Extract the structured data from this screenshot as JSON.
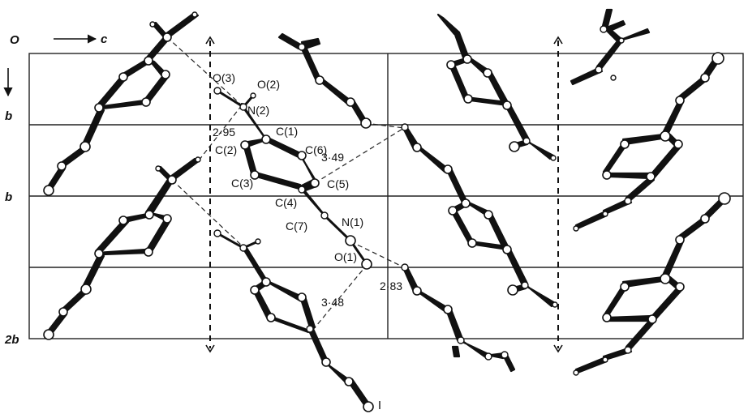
{
  "axes": {
    "origin": "O",
    "c_label": "c",
    "b_label_top": "b",
    "b_label_row1": "b",
    "b_label_row2": "b",
    "two_b_label": "2b"
  },
  "atom_labels": {
    "O3": "O(3)",
    "O2": "O(2)",
    "N2": "N(2)",
    "C1": "C(1)",
    "C6": "C(6)",
    "C2": "C(2)",
    "C3": "C(3)",
    "C5": "C(5)",
    "C4": "C(4)",
    "C7": "C(7)",
    "N1": "N(1)",
    "O1": "O(1)"
  },
  "distances": {
    "d1": "2·95",
    "d2": "3·49",
    "d3": "3·48",
    "d4": "2·83"
  }
}
